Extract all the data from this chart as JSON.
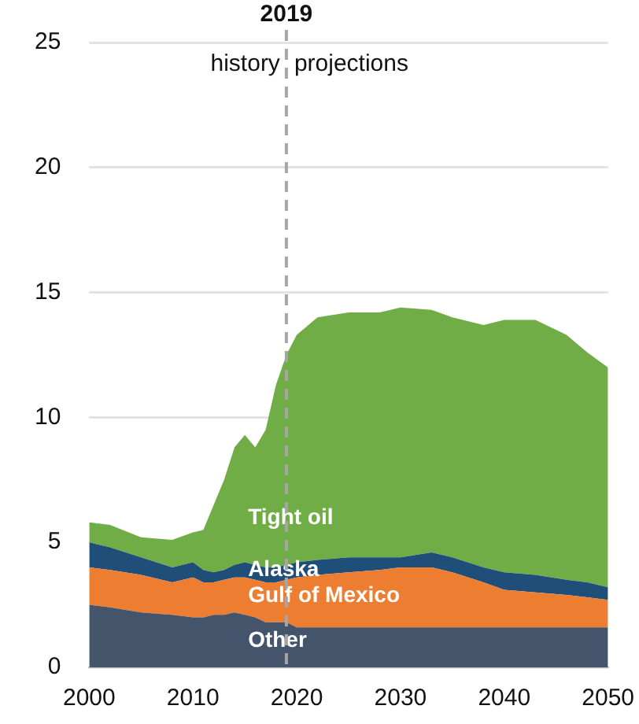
{
  "chart_data": {
    "type": "area",
    "stacked": true,
    "x": [
      2000,
      2002,
      2005,
      2008,
      2010,
      2011,
      2012,
      2013,
      2014,
      2015,
      2016,
      2017,
      2018,
      2019,
      2020,
      2022,
      2025,
      2028,
      2030,
      2033,
      2035,
      2038,
      2040,
      2043,
      2046,
      2048,
      2050
    ],
    "series": [
      {
        "name": "Other",
        "color": "#44546a",
        "values": [
          2.5,
          2.4,
          2.2,
          2.1,
          2.0,
          2.0,
          2.1,
          2.1,
          2.2,
          2.1,
          2.0,
          1.8,
          1.8,
          1.8,
          1.6,
          1.6,
          1.6,
          1.6,
          1.6,
          1.6,
          1.6,
          1.6,
          1.6,
          1.6,
          1.6,
          1.6,
          1.6
        ]
      },
      {
        "name": "Gulf of Mexico",
        "color": "#ed7d31",
        "values": [
          1.5,
          1.5,
          1.5,
          1.3,
          1.6,
          1.4,
          1.3,
          1.4,
          1.4,
          1.5,
          1.5,
          1.6,
          1.6,
          1.7,
          2.0,
          2.1,
          2.2,
          2.3,
          2.4,
          2.4,
          2.2,
          1.8,
          1.5,
          1.4,
          1.3,
          1.2,
          1.1
        ]
      },
      {
        "name": "Alaska",
        "color": "#1f4e79",
        "values": [
          1.0,
          0.9,
          0.7,
          0.6,
          0.6,
          0.5,
          0.4,
          0.4,
          0.5,
          0.6,
          0.6,
          0.6,
          0.6,
          0.6,
          0.6,
          0.6,
          0.6,
          0.5,
          0.4,
          0.6,
          0.6,
          0.6,
          0.7,
          0.7,
          0.6,
          0.6,
          0.5
        ]
      },
      {
        "name": "Tight oil",
        "color": "#70ad47",
        "values": [
          0.8,
          0.9,
          0.8,
          1.1,
          1.2,
          1.6,
          2.7,
          3.6,
          4.7,
          5.1,
          4.7,
          5.5,
          7.3,
          8.4,
          9.1,
          9.7,
          9.8,
          9.8,
          10.0,
          9.7,
          9.6,
          9.7,
          10.1,
          10.2,
          9.8,
          9.2,
          8.8
        ]
      }
    ],
    "xlim": [
      2000,
      2050
    ],
    "xticks": [
      2000,
      2010,
      2020,
      2030,
      2040,
      2050
    ],
    "ylim": [
      0,
      25
    ],
    "yticks": [
      0,
      5,
      10,
      15,
      20,
      25
    ],
    "grid": "y",
    "ref_lines": [
      {
        "axis": "x",
        "value": 2019,
        "label": "2019",
        "color": "#a6a6a6",
        "line_style": "dashed"
      }
    ],
    "annotations": [
      "history",
      "projections"
    ]
  }
}
